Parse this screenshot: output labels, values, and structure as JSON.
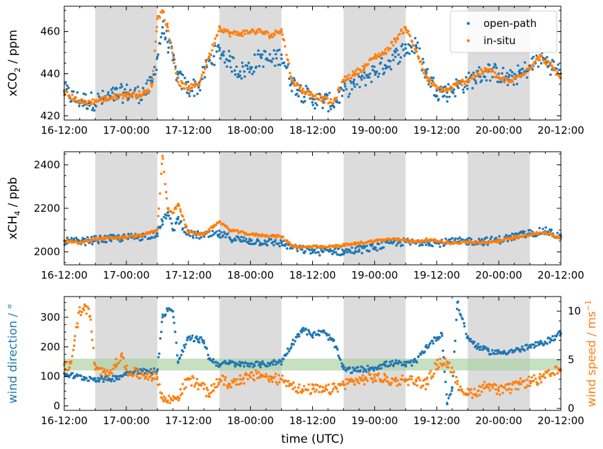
{
  "colors": {
    "blue": "#1f77b4",
    "orange": "#ff7f0e",
    "night_shade": "#dcdcdc",
    "reference_band": "#a8d0a0"
  },
  "x_axis": {
    "label": "time (UTC)",
    "unit": "hours since 16-12:00",
    "range": [
      0,
      96
    ],
    "ticks": [
      0,
      12,
      24,
      36,
      48,
      60,
      72,
      84,
      96
    ],
    "tick_labels": [
      "16-12:00",
      "17-00:00",
      "17-12:00",
      "18-00:00",
      "18-12:00",
      "19-00:00",
      "19-12:00",
      "20-00:00",
      "20-12:00"
    ]
  },
  "night_periods": [
    [
      6,
      18
    ],
    [
      30,
      42
    ],
    [
      54,
      66
    ],
    [
      78,
      90
    ]
  ],
  "chart_data": [
    {
      "type": "scatter",
      "name": "co2",
      "ylabel_main": "xCO",
      "ylabel_sub": "2",
      "ylabel_unit": " / ppm",
      "ylim": [
        418,
        472
      ],
      "yticks": [
        420,
        440,
        460
      ],
      "legend": {
        "position": "top-right",
        "entries": [
          "open-path",
          "in-situ"
        ]
      },
      "series": [
        {
          "name": "open-path",
          "color": "#1f77b4",
          "x": [
            0,
            2,
            4,
            6,
            8,
            10,
            12,
            14,
            16,
            17,
            18,
            19,
            20,
            22,
            24,
            26,
            28,
            30,
            32,
            34,
            36,
            38,
            40,
            42,
            44,
            46,
            48,
            50,
            52,
            54,
            56,
            58,
            60,
            62,
            64,
            66,
            68,
            70,
            72,
            74,
            76,
            78,
            80,
            82,
            84,
            86,
            88,
            90,
            92,
            94,
            96
          ],
          "y": [
            432,
            428,
            427,
            427,
            428,
            430,
            431,
            430,
            432,
            436,
            448,
            462,
            455,
            438,
            433,
            434,
            446,
            451,
            446,
            441,
            443,
            448,
            446,
            449,
            436,
            431,
            428,
            427,
            426,
            432,
            435,
            438,
            441,
            444,
            448,
            452,
            453,
            440,
            432,
            431,
            434,
            436,
            439,
            441,
            440,
            437,
            440,
            443,
            448,
            444,
            440
          ]
        },
        {
          "name": "in-situ",
          "color": "#ff7f0e",
          "x": [
            0,
            2,
            4,
            6,
            8,
            10,
            12,
            14,
            16,
            17,
            18,
            19,
            20,
            22,
            24,
            26,
            28,
            30,
            32,
            34,
            36,
            38,
            40,
            42,
            44,
            46,
            48,
            50,
            52,
            54,
            56,
            58,
            60,
            62,
            64,
            66,
            68,
            70,
            72,
            74,
            76,
            78,
            80,
            82,
            84,
            86,
            88,
            90,
            92,
            94,
            96
          ],
          "y": [
            431,
            428,
            426,
            427,
            428,
            429,
            430,
            430,
            431,
            435,
            466,
            470,
            462,
            436,
            433,
            435,
            448,
            462,
            459,
            459,
            460,
            460,
            458,
            461,
            437,
            432,
            430,
            428,
            426,
            437,
            440,
            443,
            448,
            450,
            456,
            462,
            451,
            438,
            433,
            432,
            435,
            437,
            440,
            442,
            438,
            436,
            439,
            443,
            448,
            444,
            438
          ]
        }
      ]
    },
    {
      "type": "scatter",
      "name": "ch4",
      "ylabel_main": "xCH",
      "ylabel_sub": "4",
      "ylabel_unit": " / ppb",
      "ylim": [
        1940,
        2460
      ],
      "yticks": [
        2000,
        2200,
        2400
      ],
      "series": [
        {
          "name": "open-path",
          "color": "#1f77b4",
          "x": [
            0,
            3,
            6,
            9,
            12,
            15,
            18,
            19,
            20,
            21,
            22,
            24,
            27,
            30,
            32,
            34,
            36,
            39,
            42,
            44,
            46,
            48,
            50,
            52,
            54,
            57,
            60,
            63,
            66,
            68,
            70,
            72,
            75,
            78,
            81,
            84,
            87,
            90,
            93,
            96
          ],
          "y": [
            2050,
            2045,
            2055,
            2060,
            2065,
            2070,
            2085,
            2140,
            2180,
            2100,
            2150,
            2080,
            2075,
            2080,
            2065,
            2055,
            2050,
            2045,
            2040,
            2020,
            2010,
            2005,
            2000,
            2005,
            2000,
            2010,
            2020,
            2040,
            2045,
            2040,
            2050,
            2040,
            2045,
            2050,
            2048,
            2055,
            2070,
            2085,
            2095,
            2070
          ]
        },
        {
          "name": "in-situ",
          "color": "#ff7f0e",
          "x": [
            0,
            3,
            6,
            9,
            12,
            15,
            18,
            19,
            20,
            21,
            22,
            24,
            27,
            30,
            32,
            34,
            36,
            39,
            42,
            44,
            46,
            48,
            50,
            52,
            54,
            57,
            60,
            63,
            66,
            68,
            70,
            72,
            75,
            78,
            81,
            84,
            87,
            90,
            93,
            96
          ],
          "y": [
            2050,
            2040,
            2060,
            2062,
            2068,
            2075,
            2100,
            2440,
            2200,
            2180,
            2220,
            2090,
            2080,
            2140,
            2100,
            2090,
            2080,
            2075,
            2070,
            2030,
            2020,
            2025,
            2020,
            2025,
            2030,
            2040,
            2050,
            2058,
            2055,
            2045,
            2055,
            2050,
            2040,
            2045,
            2040,
            2050,
            2065,
            2080,
            2090,
            2060
          ]
        }
      ]
    },
    {
      "type": "scatter",
      "name": "wind",
      "ylabel": "wind direction / °",
      "ylim": [
        -15,
        370
      ],
      "yticks": [
        0,
        100,
        200,
        300
      ],
      "y2label_main": "wind speed / ms",
      "y2label_sup": "−1",
      "y2lim": [
        -0.2,
        11.5
      ],
      "y2ticks": [
        0,
        5,
        10
      ],
      "reference_band": {
        "axis": "wind direction",
        "range": [
          120,
          160
        ]
      },
      "series": [
        {
          "name": "wind direction",
          "color": "#1f77b4",
          "axis": "left",
          "x": [
            0,
            2,
            4,
            6,
            8,
            10,
            12,
            14,
            16,
            18,
            19,
            20,
            21,
            22,
            24,
            26,
            27,
            28,
            30,
            32,
            34,
            36,
            38,
            40,
            42,
            44,
            46,
            48,
            50,
            52,
            54,
            56,
            58,
            60,
            62,
            64,
            66,
            68,
            70,
            72,
            73,
            74,
            75,
            76,
            78,
            80,
            82,
            84,
            86,
            88,
            90,
            92,
            94,
            96
          ],
          "y": [
            110,
            100,
            95,
            92,
            90,
            95,
            110,
            120,
            115,
            120,
            300,
            330,
            320,
            150,
            230,
            225,
            220,
            160,
            140,
            145,
            140,
            142,
            140,
            145,
            150,
            210,
            260,
            240,
            250,
            220,
            125,
            120,
            125,
            130,
            140,
            145,
            140,
            150,
            200,
            230,
            245,
            10,
            60,
            350,
            230,
            200,
            185,
            180,
            185,
            190,
            200,
            210,
            225,
            245
          ]
        },
        {
          "name": "wind speed",
          "color": "#ff7f0e",
          "axis": "right",
          "x": [
            0,
            1,
            2,
            3,
            4,
            5,
            6,
            8,
            10,
            11,
            12,
            13,
            14,
            16,
            18,
            19,
            20,
            22,
            24,
            26,
            28,
            30,
            32,
            34,
            36,
            38,
            40,
            42,
            44,
            46,
            48,
            50,
            52,
            54,
            56,
            58,
            60,
            62,
            64,
            66,
            68,
            70,
            72,
            74,
            76,
            78,
            80,
            82,
            84,
            86,
            88,
            90,
            92,
            94,
            96
          ],
          "y": [
            4.5,
            4.2,
            7.0,
            10.0,
            10.5,
            9.5,
            4.0,
            3.5,
            4.5,
            5.5,
            4.0,
            3.8,
            3.5,
            3.5,
            3.2,
            1.0,
            0.8,
            1.2,
            3.0,
            2.5,
            1.5,
            3.0,
            2.5,
            3.0,
            3.2,
            3.5,
            3.0,
            3.0,
            2.5,
            1.8,
            2.0,
            1.8,
            2.0,
            2.5,
            2.8,
            3.0,
            3.2,
            3.0,
            2.8,
            3.0,
            2.8,
            2.5,
            4.5,
            4.8,
            2.5,
            1.5,
            1.8,
            2.5,
            1.8,
            2.0,
            2.5,
            2.8,
            3.0,
            3.5,
            4.0
          ]
        }
      ]
    }
  ]
}
